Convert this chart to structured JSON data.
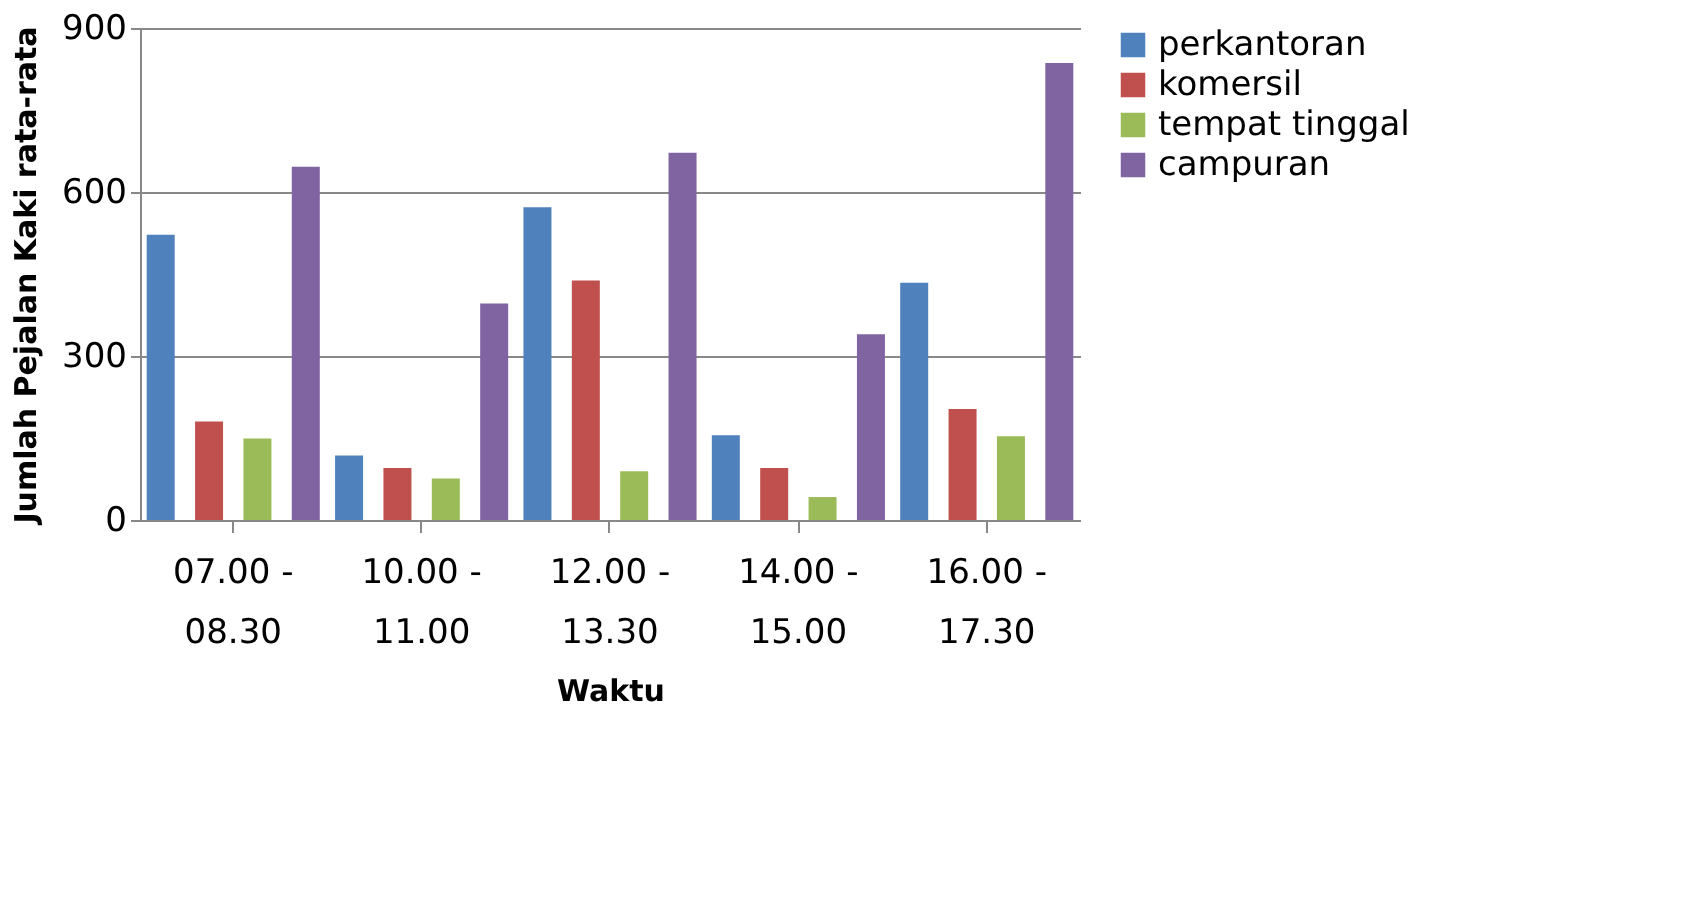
{
  "chart_data": {
    "type": "bar",
    "xlabel": "Waktu",
    "ylabel": "Jumlah Pejalan Kaki rata-rata",
    "categories": [
      "07.00 - 08.30",
      "10.00 - 11.00",
      "12.00 - 13.30",
      "14.00 - 15.00",
      "16.00 - 17.30"
    ],
    "series": [
      {
        "name": "perkantoran",
        "color": "#4f81bd",
        "values": [
          522,
          118,
          572,
          155,
          434
        ]
      },
      {
        "name": "komersil",
        "color": "#c0504d",
        "values": [
          180,
          95,
          438,
          95,
          203
        ]
      },
      {
        "name": "tempat tinggal",
        "color": "#9bbb59",
        "values": [
          149,
          76,
          89,
          42,
          153
        ]
      },
      {
        "name": "campuran",
        "color": "#8064a2",
        "values": [
          646,
          396,
          672,
          340,
          836
        ]
      }
    ],
    "ylim": [
      0,
      900
    ],
    "yticks": [
      0,
      300,
      600,
      900
    ],
    "grid": "y",
    "legend": "right"
  }
}
